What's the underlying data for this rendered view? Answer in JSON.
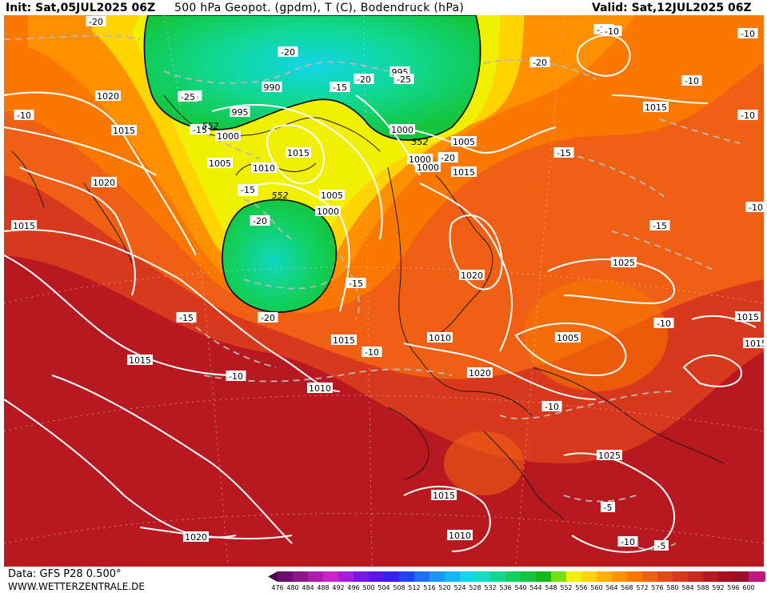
{
  "header": {
    "init": "Init: Sat,05JUL2025 06Z",
    "title": "500 hPa Geopot. (gpdm), T (C), Bodendruck (hPa)",
    "valid": "Valid: Sat,12JUL2025 06Z"
  },
  "footer": {
    "data_source": "Data: GFS P28 0.500°",
    "website": "WWW.WETTERZENTRALE.DE"
  },
  "legend": {
    "values": [
      "476",
      "480",
      "484",
      "488",
      "492",
      "496",
      "500",
      "504",
      "508",
      "512",
      "516",
      "520",
      "524",
      "528",
      "532",
      "536",
      "540",
      "544",
      "548",
      "552",
      "556",
      "560",
      "564",
      "568",
      "572",
      "576",
      "580",
      "584",
      "588",
      "592",
      "596",
      "600"
    ],
    "colors": [
      "#4b0a4b",
      "#6a0f6a",
      "#8a168a",
      "#aa1caa",
      "#c826c8",
      "#a51ee0",
      "#7a16e6",
      "#5a14ef",
      "#3820f5",
      "#1e46f7",
      "#1e6ef7",
      "#1e96f7",
      "#12b8f3",
      "#12d6e8",
      "#10e0c0",
      "#10d890",
      "#12d060",
      "#14c43a",
      "#14b818",
      "#78e010",
      "#f0f000",
      "#ffd400",
      "#ffb000",
      "#ff9000",
      "#fa7800",
      "#f06014",
      "#e44818",
      "#d8381c",
      "#c82820",
      "#b81820",
      "#a81020",
      "#981028",
      "#c01880"
    ]
  },
  "pressure_labels": [
    "1020",
    "1015",
    "1020",
    "1015",
    "1015",
    "1000",
    "995",
    "990",
    "995",
    "1000",
    "1015",
    "1005",
    "1010",
    "1005",
    "1000",
    "1005",
    "1015",
    "1020",
    "1025",
    "1005",
    "1010",
    "1020",
    "1015",
    "1010",
    "1015",
    "1020",
    "1025",
    "1015",
    "1010",
    "1015",
    "1015",
    "1000",
    "1000"
  ],
  "temperature_labels": [
    "-20",
    "-15",
    "-10",
    "-25",
    "-20",
    "-15",
    "-20",
    "-25",
    "-20",
    "-15",
    "-15",
    "-15",
    "-20",
    "-15",
    "-20",
    "-15",
    "-15",
    "-10",
    "-10",
    "-15",
    "-10",
    "-10",
    "-10",
    "-10",
    "-10",
    "-10",
    "-5",
    "-5",
    "-15",
    "-10",
    "-10",
    "-20"
  ],
  "contour_552_labels": [
    "552",
    "552",
    "552"
  ],
  "colors": {
    "low_trough": "#14c43a",
    "mid": "#ff9000",
    "high_ridge": "#a81020"
  }
}
